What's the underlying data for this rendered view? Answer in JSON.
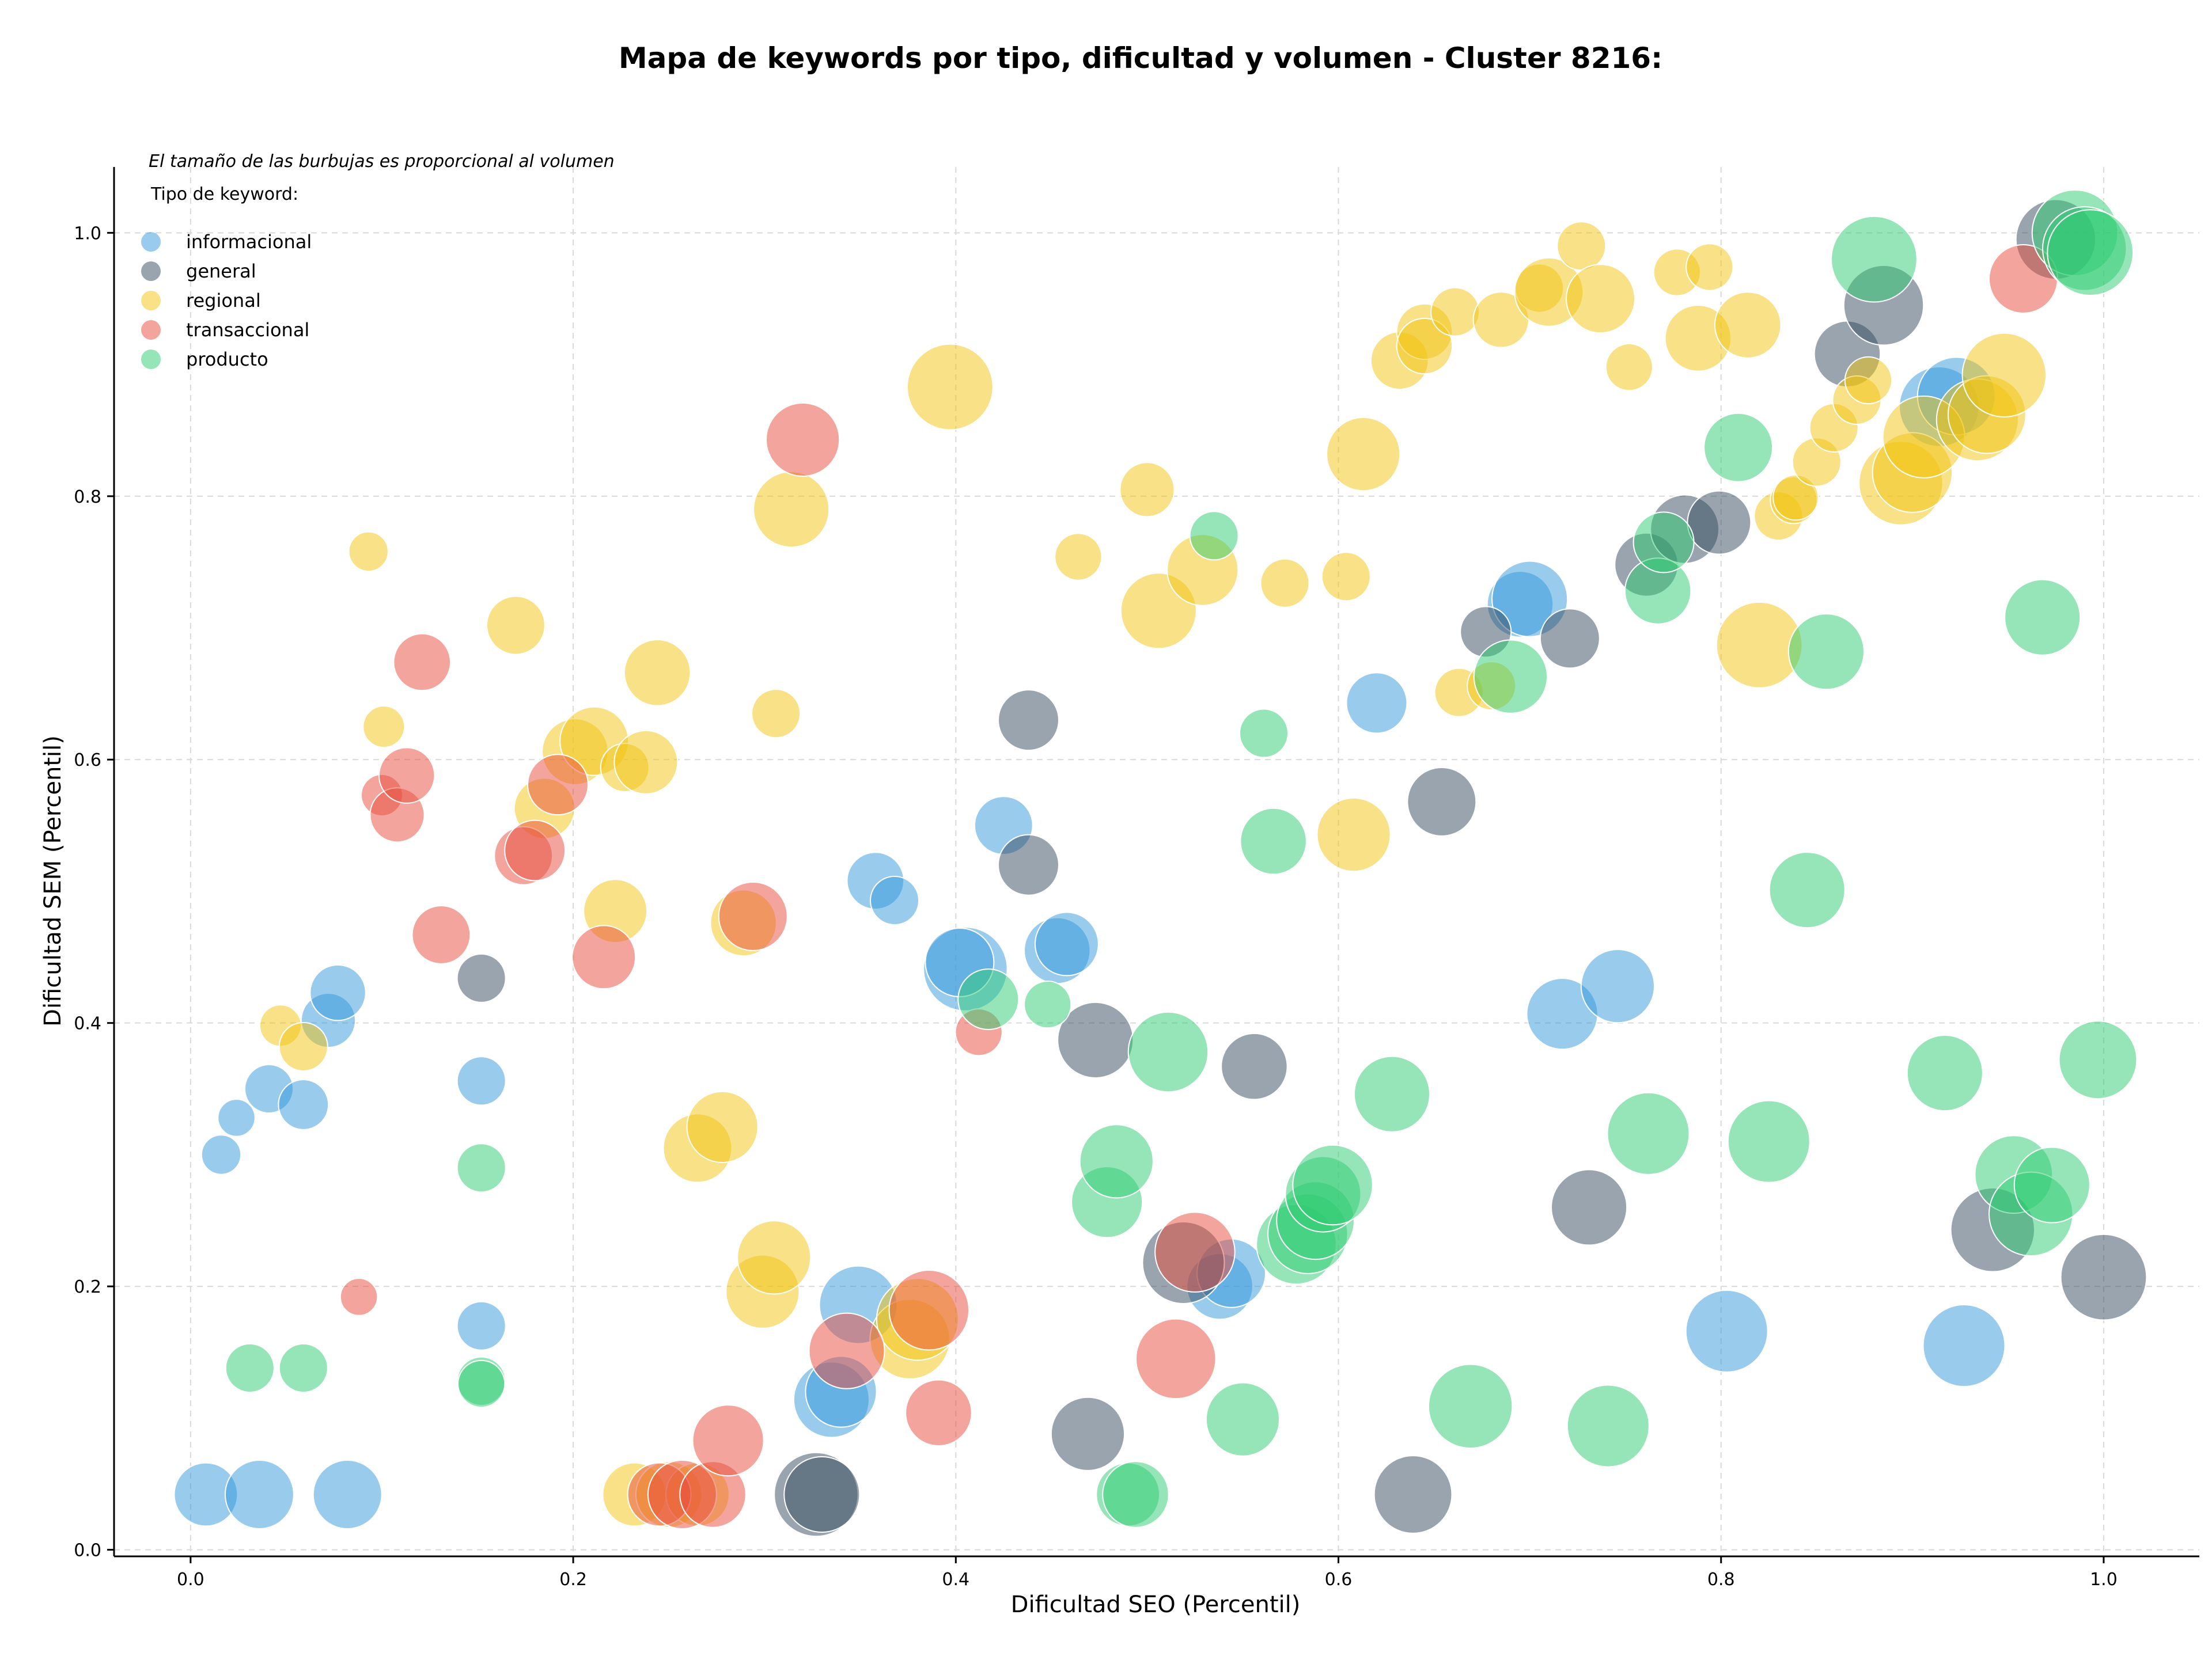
{
  "chart_data": {
    "type": "scatter",
    "title": "Mapa de keywords por tipo, dificultad y volumen - Cluster 8216:",
    "xlabel": "Dificultad SEO (Percentil)",
    "ylabel": "Dificultad SEM (Percentil)",
    "annotation": "El tamaño de las burbujas es proporcional al volumen",
    "legend_title": "Tipo de keyword:",
    "legend_position": "top-left",
    "xlim": [
      -0.04,
      1.05
    ],
    "ylim": [
      -0.005,
      1.05
    ],
    "x_ticks": [
      "0.0",
      "0.2",
      "0.4",
      "0.6",
      "0.8",
      "1.0"
    ],
    "y_ticks": [
      "0.0",
      "0.2",
      "0.4",
      "0.6",
      "0.8",
      "1.0"
    ],
    "grid": true,
    "series": [
      {
        "name": "informacional",
        "color": "#3498db",
        "points": [
          {
            "x": 0.008,
            "y": 0.042,
            "v": 45
          },
          {
            "x": 0.036,
            "y": 0.042,
            "v": 55
          },
          {
            "x": 0.082,
            "y": 0.042,
            "v": 55
          },
          {
            "x": 0.016,
            "y": 0.3,
            "v": 12
          },
          {
            "x": 0.024,
            "y": 0.328,
            "v": 10
          },
          {
            "x": 0.041,
            "y": 0.35,
            "v": 22
          },
          {
            "x": 0.059,
            "y": 0.338,
            "v": 24
          },
          {
            "x": 0.072,
            "y": 0.402,
            "v": 30
          },
          {
            "x": 0.077,
            "y": 0.423,
            "v": 32
          },
          {
            "x": 0.152,
            "y": 0.356,
            "v": 22
          },
          {
            "x": 0.152,
            "y": 0.17,
            "v": 22
          },
          {
            "x": 0.335,
            "y": 0.114,
            "v": 70
          },
          {
            "x": 0.34,
            "y": 0.12,
            "v": 60
          },
          {
            "x": 0.349,
            "y": 0.186,
            "v": 75
          },
          {
            "x": 0.358,
            "y": 0.508,
            "v": 34
          },
          {
            "x": 0.368,
            "y": 0.493,
            "v": 22
          },
          {
            "x": 0.405,
            "y": 0.441,
            "v": 90
          },
          {
            "x": 0.402,
            "y": 0.446,
            "v": 55
          },
          {
            "x": 0.425,
            "y": 0.55,
            "v": 36
          },
          {
            "x": 0.453,
            "y": 0.455,
            "v": 50
          },
          {
            "x": 0.458,
            "y": 0.46,
            "v": 45
          },
          {
            "x": 0.538,
            "y": 0.2,
            "v": 50
          },
          {
            "x": 0.544,
            "y": 0.21,
            "v": 55
          },
          {
            "x": 0.62,
            "y": 0.643,
            "v": 40
          },
          {
            "x": 0.695,
            "y": 0.718,
            "v": 50
          },
          {
            "x": 0.7,
            "y": 0.722,
            "v": 70
          },
          {
            "x": 0.717,
            "y": 0.407,
            "v": 60
          },
          {
            "x": 0.746,
            "y": 0.428,
            "v": 65
          },
          {
            "x": 0.803,
            "y": 0.166,
            "v": 85
          },
          {
            "x": 0.927,
            "y": 0.155,
            "v": 85
          },
          {
            "x": 0.914,
            "y": 0.868,
            "v": 80
          },
          {
            "x": 0.923,
            "y": 0.876,
            "v": 75
          }
        ]
      },
      {
        "name": "general",
        "color": "#34495e",
        "points": [
          {
            "x": 0.152,
            "y": 0.434,
            "v": 22
          },
          {
            "x": 0.327,
            "y": 0.042,
            "v": 90
          },
          {
            "x": 0.33,
            "y": 0.042,
            "v": 70
          },
          {
            "x": 0.438,
            "y": 0.63,
            "v": 40
          },
          {
            "x": 0.438,
            "y": 0.52,
            "v": 40
          },
          {
            "x": 0.469,
            "y": 0.088,
            "v": 65
          },
          {
            "x": 0.473,
            "y": 0.387,
            "v": 70
          },
          {
            "x": 0.519,
            "y": 0.218,
            "v": 85
          },
          {
            "x": 0.556,
            "y": 0.367,
            "v": 50
          },
          {
            "x": 0.639,
            "y": 0.042,
            "v": 75
          },
          {
            "x": 0.654,
            "y": 0.568,
            "v": 55
          },
          {
            "x": 0.677,
            "y": 0.697,
            "v": 25
          },
          {
            "x": 0.721,
            "y": 0.692,
            "v": 38
          },
          {
            "x": 0.731,
            "y": 0.26,
            "v": 70
          },
          {
            "x": 0.761,
            "y": 0.748,
            "v": 45
          },
          {
            "x": 0.781,
            "y": 0.775,
            "v": 55
          },
          {
            "x": 0.799,
            "y": 0.78,
            "v": 45
          },
          {
            "x": 0.866,
            "y": 0.908,
            "v": 50
          },
          {
            "x": 0.885,
            "y": 0.945,
            "v": 80
          },
          {
            "x": 0.942,
            "y": 0.243,
            "v": 90
          },
          {
            "x": 0.975,
            "y": 0.995,
            "v": 80
          },
          {
            "x": 1.0,
            "y": 0.207,
            "v": 95
          }
        ]
      },
      {
        "name": "regional",
        "color": "#f1c40f",
        "points": [
          {
            "x": 0.047,
            "y": 0.398,
            "v": 14
          },
          {
            "x": 0.059,
            "y": 0.382,
            "v": 22
          },
          {
            "x": 0.093,
            "y": 0.758,
            "v": 12
          },
          {
            "x": 0.101,
            "y": 0.625,
            "v": 14
          },
          {
            "x": 0.17,
            "y": 0.702,
            "v": 36
          },
          {
            "x": 0.185,
            "y": 0.563,
            "v": 40
          },
          {
            "x": 0.201,
            "y": 0.606,
            "v": 50
          },
          {
            "x": 0.211,
            "y": 0.614,
            "v": 55
          },
          {
            "x": 0.222,
            "y": 0.485,
            "v": 45
          },
          {
            "x": 0.227,
            "y": 0.594,
            "v": 22
          },
          {
            "x": 0.238,
            "y": 0.598,
            "v": 45
          },
          {
            "x": 0.244,
            "y": 0.666,
            "v": 50
          },
          {
            "x": 0.232,
            "y": 0.042,
            "v": 45
          },
          {
            "x": 0.25,
            "y": 0.042,
            "v": 50
          },
          {
            "x": 0.265,
            "y": 0.042,
            "v": 45
          },
          {
            "x": 0.265,
            "y": 0.305,
            "v": 55
          },
          {
            "x": 0.278,
            "y": 0.321,
            "v": 60
          },
          {
            "x": 0.289,
            "y": 0.476,
            "v": 50
          },
          {
            "x": 0.299,
            "y": 0.196,
            "v": 65
          },
          {
            "x": 0.305,
            "y": 0.222,
            "v": 65
          },
          {
            "x": 0.306,
            "y": 0.635,
            "v": 22
          },
          {
            "x": 0.314,
            "y": 0.79,
            "v": 70
          },
          {
            "x": 0.376,
            "y": 0.16,
            "v": 80
          },
          {
            "x": 0.38,
            "y": 0.175,
            "v": 85
          },
          {
            "x": 0.397,
            "y": 0.883,
            "v": 95
          },
          {
            "x": 0.464,
            "y": 0.754,
            "v": 20
          },
          {
            "x": 0.5,
            "y": 0.805,
            "v": 30
          },
          {
            "x": 0.506,
            "y": 0.713,
            "v": 70
          },
          {
            "x": 0.529,
            "y": 0.744,
            "v": 60
          },
          {
            "x": 0.572,
            "y": 0.734,
            "v": 22
          },
          {
            "x": 0.604,
            "y": 0.739,
            "v": 22
          },
          {
            "x": 0.608,
            "y": 0.543,
            "v": 65
          },
          {
            "x": 0.613,
            "y": 0.832,
            "v": 65
          },
          {
            "x": 0.632,
            "y": 0.903,
            "v": 35
          },
          {
            "x": 0.645,
            "y": 0.925,
            "v": 32
          },
          {
            "x": 0.645,
            "y": 0.914,
            "v": 32
          },
          {
            "x": 0.661,
            "y": 0.94,
            "v": 22
          },
          {
            "x": 0.663,
            "y": 0.651,
            "v": 22
          },
          {
            "x": 0.68,
            "y": 0.656,
            "v": 22
          },
          {
            "x": 0.685,
            "y": 0.934,
            "v": 32
          },
          {
            "x": 0.705,
            "y": 0.958,
            "v": 22
          },
          {
            "x": 0.71,
            "y": 0.955,
            "v": 55
          },
          {
            "x": 0.727,
            "y": 0.99,
            "v": 22
          },
          {
            "x": 0.737,
            "y": 0.95,
            "v": 55
          },
          {
            "x": 0.752,
            "y": 0.898,
            "v": 20
          },
          {
            "x": 0.777,
            "y": 0.97,
            "v": 20
          },
          {
            "x": 0.788,
            "y": 0.92,
            "v": 50
          },
          {
            "x": 0.794,
            "y": 0.974,
            "v": 20
          },
          {
            "x": 0.814,
            "y": 0.93,
            "v": 50
          },
          {
            "x": 0.82,
            "y": 0.687,
            "v": 95
          },
          {
            "x": 0.83,
            "y": 0.785,
            "v": 22
          },
          {
            "x": 0.838,
            "y": 0.797,
            "v": 20
          },
          {
            "x": 0.839,
            "y": 0.799,
            "v": 18
          },
          {
            "x": 0.85,
            "y": 0.826,
            "v": 22
          },
          {
            "x": 0.859,
            "y": 0.852,
            "v": 22
          },
          {
            "x": 0.871,
            "y": 0.873,
            "v": 22
          },
          {
            "x": 0.877,
            "y": 0.888,
            "v": 20
          },
          {
            "x": 0.894,
            "y": 0.81,
            "v": 90
          },
          {
            "x": 0.9,
            "y": 0.818,
            "v": 80
          },
          {
            "x": 0.906,
            "y": 0.845,
            "v": 85
          },
          {
            "x": 0.934,
            "y": 0.858,
            "v": 85
          },
          {
            "x": 0.939,
            "y": 0.862,
            "v": 75
          },
          {
            "x": 0.948,
            "y": 0.892,
            "v": 90
          }
        ]
      },
      {
        "name": "transaccional",
        "color": "#e74c3c",
        "points": [
          {
            "x": 0.088,
            "y": 0.192,
            "v": 10
          },
          {
            "x": 0.1,
            "y": 0.573,
            "v": 14
          },
          {
            "x": 0.108,
            "y": 0.558,
            "v": 30
          },
          {
            "x": 0.113,
            "y": 0.588,
            "v": 32
          },
          {
            "x": 0.121,
            "y": 0.674,
            "v": 34
          },
          {
            "x": 0.131,
            "y": 0.467,
            "v": 36
          },
          {
            "x": 0.174,
            "y": 0.527,
            "v": 36
          },
          {
            "x": 0.18,
            "y": 0.531,
            "v": 40
          },
          {
            "x": 0.192,
            "y": 0.581,
            "v": 40
          },
          {
            "x": 0.216,
            "y": 0.45,
            "v": 45
          },
          {
            "x": 0.245,
            "y": 0.042,
            "v": 45
          },
          {
            "x": 0.257,
            "y": 0.042,
            "v": 55
          },
          {
            "x": 0.273,
            "y": 0.042,
            "v": 50
          },
          {
            "x": 0.281,
            "y": 0.083,
            "v": 60
          },
          {
            "x": 0.294,
            "y": 0.481,
            "v": 55
          },
          {
            "x": 0.32,
            "y": 0.843,
            "v": 65
          },
          {
            "x": 0.343,
            "y": 0.151,
            "v": 70
          },
          {
            "x": 0.386,
            "y": 0.182,
            "v": 80
          },
          {
            "x": 0.391,
            "y": 0.104,
            "v": 50
          },
          {
            "x": 0.412,
            "y": 0.393,
            "v": 20
          },
          {
            "x": 0.515,
            "y": 0.145,
            "v": 80
          },
          {
            "x": 0.525,
            "y": 0.226,
            "v": 80
          },
          {
            "x": 0.958,
            "y": 0.965,
            "v": 55
          }
        ]
      },
      {
        "name": "producto",
        "color": "#2ecc71",
        "points": [
          {
            "x": 0.031,
            "y": 0.138,
            "v": 22
          },
          {
            "x": 0.059,
            "y": 0.138,
            "v": 22
          },
          {
            "x": 0.152,
            "y": 0.29,
            "v": 22
          },
          {
            "x": 0.152,
            "y": 0.128,
            "v": 22
          },
          {
            "x": 0.152,
            "y": 0.126,
            "v": 20
          },
          {
            "x": 0.417,
            "y": 0.418,
            "v": 40
          },
          {
            "x": 0.448,
            "y": 0.414,
            "v": 20
          },
          {
            "x": 0.479,
            "y": 0.264,
            "v": 60
          },
          {
            "x": 0.484,
            "y": 0.295,
            "v": 65
          },
          {
            "x": 0.49,
            "y": 0.042,
            "v": 45
          },
          {
            "x": 0.494,
            "y": 0.042,
            "v": 50
          },
          {
            "x": 0.511,
            "y": 0.378,
            "v": 80
          },
          {
            "x": 0.535,
            "y": 0.77,
            "v": 22
          },
          {
            "x": 0.55,
            "y": 0.099,
            "v": 65
          },
          {
            "x": 0.561,
            "y": 0.62,
            "v": 22
          },
          {
            "x": 0.566,
            "y": 0.538,
            "v": 50
          },
          {
            "x": 0.578,
            "y": 0.232,
            "v": 80
          },
          {
            "x": 0.584,
            "y": 0.24,
            "v": 80
          },
          {
            "x": 0.588,
            "y": 0.25,
            "v": 75
          },
          {
            "x": 0.592,
            "y": 0.27,
            "v": 70
          },
          {
            "x": 0.597,
            "y": 0.277,
            "v": 80
          },
          {
            "x": 0.628,
            "y": 0.346,
            "v": 70
          },
          {
            "x": 0.669,
            "y": 0.109,
            "v": 90
          },
          {
            "x": 0.69,
            "y": 0.663,
            "v": 65
          },
          {
            "x": 0.741,
            "y": 0.094,
            "v": 85
          },
          {
            "x": 0.762,
            "y": 0.316,
            "v": 85
          },
          {
            "x": 0.767,
            "y": 0.728,
            "v": 50
          },
          {
            "x": 0.77,
            "y": 0.765,
            "v": 40
          },
          {
            "x": 0.809,
            "y": 0.837,
            "v": 55
          },
          {
            "x": 0.825,
            "y": 0.31,
            "v": 85
          },
          {
            "x": 0.845,
            "y": 0.501,
            "v": 70
          },
          {
            "x": 0.855,
            "y": 0.682,
            "v": 70
          },
          {
            "x": 0.88,
            "y": 0.98,
            "v": 95
          },
          {
            "x": 0.917,
            "y": 0.362,
            "v": 70
          },
          {
            "x": 0.953,
            "y": 0.285,
            "v": 75
          },
          {
            "x": 0.962,
            "y": 0.255,
            "v": 90
          },
          {
            "x": 0.968,
            "y": 0.708,
            "v": 70
          },
          {
            "x": 0.973,
            "y": 0.277,
            "v": 70
          },
          {
            "x": 0.985,
            "y": 1.0,
            "v": 95
          },
          {
            "x": 0.99,
            "y": 0.988,
            "v": 90
          },
          {
            "x": 0.993,
            "y": 0.985,
            "v": 95
          },
          {
            "x": 0.997,
            "y": 0.372,
            "v": 75
          }
        ]
      }
    ]
  }
}
